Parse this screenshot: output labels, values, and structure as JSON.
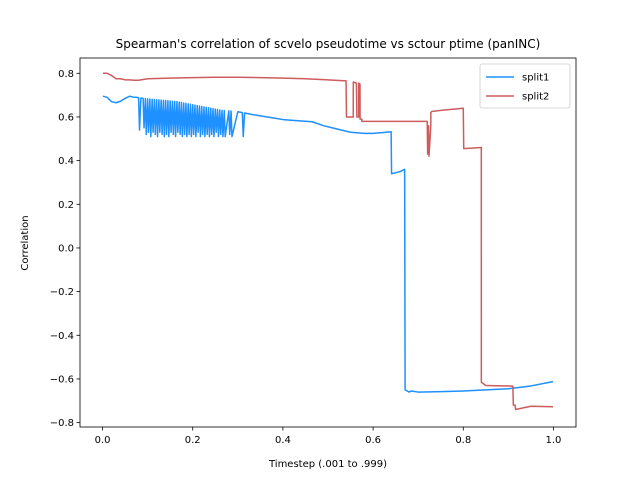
{
  "chart_data": {
    "type": "line",
    "title": "Spearman's correlation of scvelo pseudotime vs sctour ptime (panINC)",
    "xlabel": "Timestep (.001 to .999)",
    "ylabel": "Correlation",
    "xlim": [
      -0.05,
      1.05
    ],
    "ylim": [
      -0.82,
      0.87
    ],
    "xticks": [
      0.0,
      0.2,
      0.4,
      0.6,
      0.8,
      1.0
    ],
    "xtick_labels": [
      "0.0",
      "0.2",
      "0.4",
      "0.6",
      "0.8",
      "1.0"
    ],
    "yticks": [
      -0.8,
      -0.6,
      -0.4,
      -0.2,
      0.0,
      0.2,
      0.4,
      0.6,
      0.8
    ],
    "ytick_labels": [
      "−0.8",
      "−0.6",
      "−0.4",
      "−0.2",
      "0.0",
      "0.2",
      "0.4",
      "0.6",
      "0.8"
    ],
    "grid": false,
    "legend_position": "top-right",
    "series": [
      {
        "name": "split1",
        "color": "#1e90ff",
        "x": [
          0.001,
          0.01,
          0.02,
          0.03,
          0.04,
          0.05,
          0.06,
          0.07,
          0.075,
          0.08,
          0.082,
          0.085,
          0.09,
          0.092,
          0.095,
          0.097,
          0.1,
          0.102,
          0.105,
          0.107,
          0.11,
          0.112,
          0.115,
          0.117,
          0.12,
          0.122,
          0.125,
          0.127,
          0.13,
          0.132,
          0.135,
          0.137,
          0.14,
          0.142,
          0.145,
          0.147,
          0.15,
          0.152,
          0.155,
          0.157,
          0.16,
          0.162,
          0.165,
          0.167,
          0.17,
          0.172,
          0.175,
          0.177,
          0.18,
          0.182,
          0.185,
          0.187,
          0.19,
          0.192,
          0.195,
          0.197,
          0.2,
          0.202,
          0.205,
          0.207,
          0.21,
          0.212,
          0.215,
          0.217,
          0.22,
          0.222,
          0.225,
          0.227,
          0.23,
          0.232,
          0.235,
          0.237,
          0.24,
          0.242,
          0.245,
          0.247,
          0.25,
          0.252,
          0.255,
          0.257,
          0.26,
          0.262,
          0.265,
          0.267,
          0.27,
          0.272,
          0.28,
          0.282,
          0.285,
          0.287,
          0.3,
          0.31,
          0.312,
          0.315,
          0.33,
          0.35,
          0.38,
          0.4,
          0.43,
          0.465,
          0.49,
          0.52,
          0.55,
          0.58,
          0.6,
          0.62,
          0.64,
          0.641,
          0.66,
          0.67,
          0.671,
          0.68,
          0.685,
          0.7,
          0.75,
          0.8,
          0.85,
          0.9,
          0.95,
          0.999
        ],
        "y": [
          0.695,
          0.69,
          0.67,
          0.665,
          0.672,
          0.685,
          0.695,
          0.69,
          0.69,
          0.688,
          0.54,
          0.686,
          0.685,
          0.55,
          0.684,
          0.52,
          0.683,
          0.53,
          0.682,
          0.51,
          0.681,
          0.53,
          0.68,
          0.52,
          0.679,
          0.51,
          0.678,
          0.53,
          0.677,
          0.52,
          0.676,
          0.51,
          0.675,
          0.52,
          0.674,
          0.51,
          0.673,
          0.53,
          0.672,
          0.52,
          0.671,
          0.51,
          0.67,
          0.53,
          0.668,
          0.52,
          0.666,
          0.51,
          0.664,
          0.52,
          0.662,
          0.51,
          0.66,
          0.52,
          0.658,
          0.51,
          0.656,
          0.52,
          0.654,
          0.51,
          0.652,
          0.53,
          0.65,
          0.51,
          0.648,
          0.52,
          0.646,
          0.51,
          0.644,
          0.52,
          0.642,
          0.51,
          0.64,
          0.52,
          0.638,
          0.51,
          0.636,
          0.53,
          0.634,
          0.51,
          0.632,
          0.52,
          0.63,
          0.51,
          0.629,
          0.51,
          0.628,
          0.52,
          0.627,
          0.51,
          0.624,
          0.62,
          0.51,
          0.618,
          0.612,
          0.605,
          0.595,
          0.588,
          0.583,
          0.578,
          0.56,
          0.545,
          0.53,
          0.525,
          0.525,
          0.528,
          0.532,
          0.34,
          0.35,
          0.36,
          -0.65,
          -0.66,
          -0.655,
          -0.66,
          -0.658,
          -0.655,
          -0.65,
          -0.645,
          -0.632,
          -0.612
        ]
      },
      {
        "name": "split2",
        "color": "#cd5c5c",
        "x": [
          0.001,
          0.01,
          0.02,
          0.03,
          0.04,
          0.05,
          0.06,
          0.07,
          0.08,
          0.1,
          0.15,
          0.2,
          0.25,
          0.3,
          0.35,
          0.4,
          0.45,
          0.5,
          0.54,
          0.541,
          0.548,
          0.556,
          0.5561,
          0.563,
          0.564,
          0.568,
          0.5681,
          0.571,
          0.5711,
          0.575,
          0.5751,
          0.6,
          0.65,
          0.7,
          0.72,
          0.721,
          0.723,
          0.724,
          0.728,
          0.7281,
          0.73,
          0.75,
          0.8,
          0.801,
          0.84,
          0.8401,
          0.85,
          0.9,
          0.91,
          0.911,
          0.915,
          0.916,
          0.95,
          0.999
        ],
        "y": [
          0.8,
          0.8,
          0.79,
          0.775,
          0.775,
          0.77,
          0.77,
          0.768,
          0.768,
          0.775,
          0.778,
          0.78,
          0.782,
          0.782,
          0.78,
          0.778,
          0.775,
          0.77,
          0.765,
          0.6,
          0.6,
          0.6,
          0.76,
          0.755,
          0.6,
          0.6,
          0.755,
          0.75,
          0.59,
          0.59,
          0.58,
          0.58,
          0.58,
          0.58,
          0.58,
          0.43,
          0.56,
          0.42,
          0.56,
          0.62,
          0.625,
          0.63,
          0.64,
          0.455,
          0.46,
          -0.615,
          -0.63,
          -0.632,
          -0.633,
          -0.72,
          -0.72,
          -0.74,
          -0.725,
          -0.727
        ]
      }
    ]
  }
}
